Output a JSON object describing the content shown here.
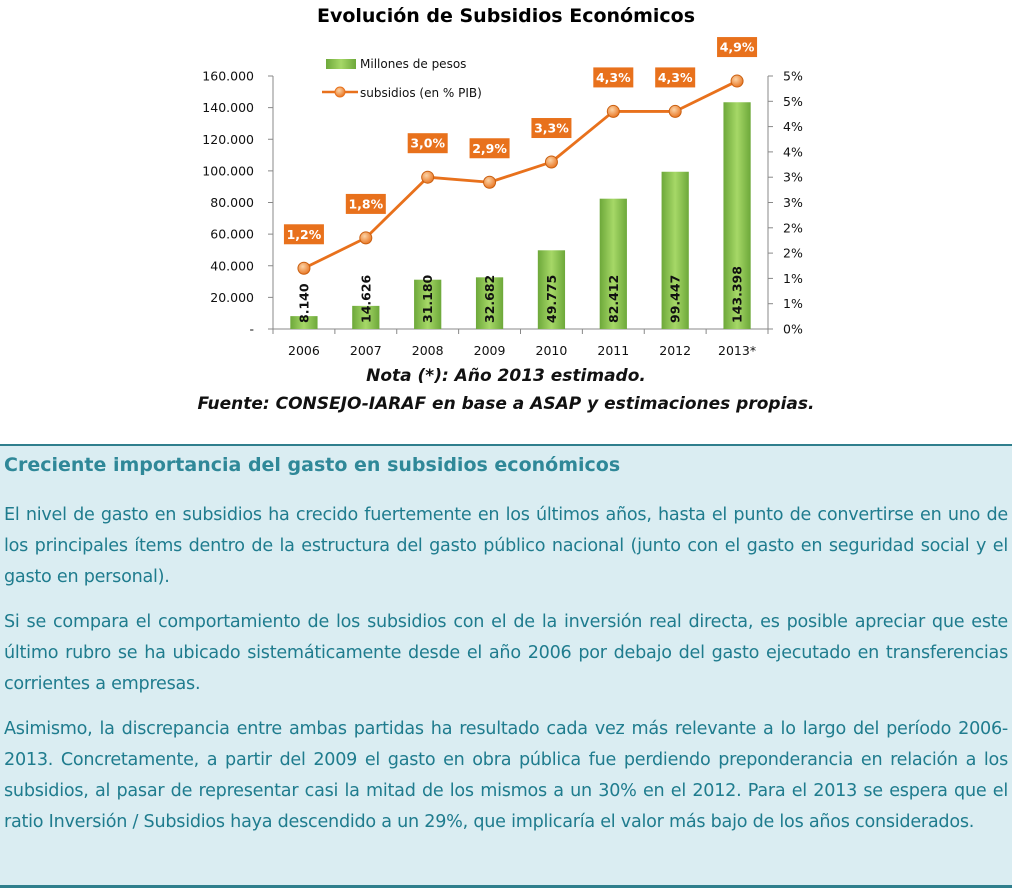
{
  "chart_data": {
    "type": "bar",
    "title": "Evolución de Subsidios Económicos",
    "categories": [
      "2006",
      "2007",
      "2008",
      "2009",
      "2010",
      "2011",
      "2012",
      "2013*"
    ],
    "series": [
      {
        "name": "Millones de pesos",
        "type": "bar",
        "axis": "left",
        "color": "#8cc63f",
        "values": [
          8140,
          14626,
          31180,
          32682,
          49775,
          82412,
          99447,
          143398
        ],
        "labels": [
          "8.140",
          "14.626",
          "31.180",
          "32.682",
          "49.775",
          "82.412",
          "99.447",
          "143.398"
        ]
      },
      {
        "name": "subsidios (en % PIB)",
        "type": "line",
        "axis": "right",
        "color": "#e8711c",
        "values": [
          1.2,
          1.8,
          3.0,
          2.9,
          3.3,
          4.3,
          4.3,
          4.9
        ],
        "labels": [
          "1,2%",
          "1,8%",
          "3,0%",
          "2,9%",
          "3,3%",
          "4,3%",
          "4,3%",
          "4,9%"
        ]
      }
    ],
    "y_left": {
      "ylim": [
        0,
        160000
      ],
      "ticks": [
        0,
        20000,
        40000,
        60000,
        80000,
        100000,
        120000,
        140000,
        160000
      ],
      "tick_labels": [
        "-",
        "20.000",
        "40.000",
        "60.000",
        "80.000",
        "100.000",
        "120.000",
        "140.000",
        "160.000"
      ]
    },
    "y_right": {
      "ylim": [
        0,
        5
      ],
      "ticks": [
        0,
        0.5,
        1,
        1.5,
        2,
        2.5,
        3,
        3.5,
        4,
        4.5,
        5
      ],
      "tick_labels": [
        "0%",
        "1%",
        "1%",
        "2%",
        "2%",
        "3%",
        "3%",
        "4%",
        "4%",
        "5%",
        "5%"
      ]
    },
    "grid": false,
    "legend_position": "top-left",
    "notes": [
      "Nota (*): Año 2013 estimado.",
      "Fuente: CONSEJO-IARAF en base a ASAP y estimaciones propias."
    ]
  },
  "section": {
    "title": "Creciente importancia del gasto en subsidios económicos",
    "paragraphs": [
      "El nivel de gasto en subsidios ha crecido fuertemente en los últimos años, hasta el punto de convertirse en uno de los principales ítems dentro de la estructura del gasto público nacional (junto con el gasto en seguridad social y el gasto en personal).",
      "Si se compara el comportamiento de los subsidios con el de la inversión real directa, es posible apreciar que este último rubro se ha ubicado sistemáticamente desde el año 2006 por debajo del gasto ejecutado en transferencias corrientes a empresas.",
      "Asimismo, la discrepancia entre ambas partidas ha resultado cada vez más relevante a lo largo del período 2006-2013. Concretamente, a partir del 2009 el gasto en obra pública fue perdiendo preponderancia en relación a los subsidios, al pasar de representar casi la mitad de los mismos a un 30% en el 2012. Para el 2013 se espera que el ratio Inversión / Subsidios haya descendido a un 29%, que implicaría el valor más bajo de los años considerados."
    ]
  }
}
